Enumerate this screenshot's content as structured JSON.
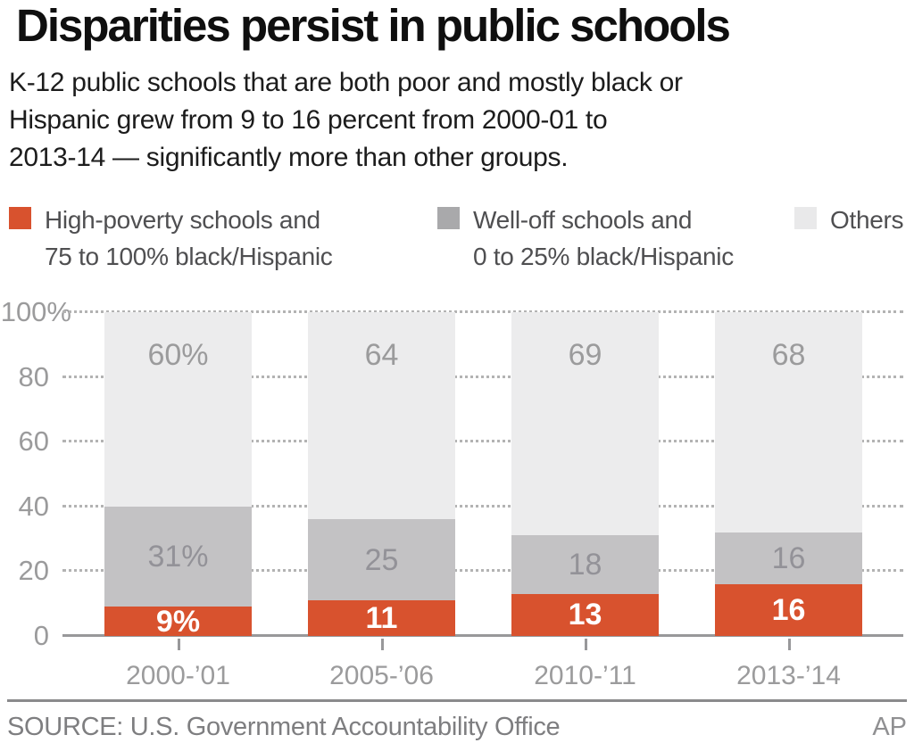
{
  "header": {
    "title": "Disparities persist in public schools",
    "subtitle_lines": [
      "K-12 public schools that are both poor and mostly black or",
      "Hispanic grew from 9 to 16 percent from 2000-01 to",
      "2013-14 — significantly more than other groups."
    ]
  },
  "legend": {
    "items": [
      {
        "lines": [
          "High-poverty schools and",
          "75 to 100% black/Hispanic"
        ],
        "swatch_color": "#d8522e"
      },
      {
        "lines": [
          "Well-off schools and",
          "0 to 25% black/Hispanic"
        ],
        "swatch_color": "#a9a9ab"
      },
      {
        "lines": [
          "Others"
        ],
        "swatch_color": "#e9e9ea"
      }
    ]
  },
  "chart_data": {
    "type": "bar",
    "stacked": true,
    "categories": [
      "2000-’01",
      "2005-’06",
      "2010-’11",
      "2013-’14"
    ],
    "series": [
      {
        "name": "High-poverty schools and 75 to 100% black/Hispanic",
        "color": "#d8522e",
        "values": [
          9,
          11,
          13,
          16
        ],
        "labels": [
          "9%",
          "11",
          "13",
          "16"
        ],
        "label_color": "#ffffff",
        "label_bold": true,
        "label_anchor": "center"
      },
      {
        "name": "Well-off schools and 0 to 25% black/Hispanic",
        "color": "#c3c2c4",
        "values": [
          31,
          25,
          18,
          16
        ],
        "labels": [
          "31%",
          "25",
          "18",
          "16"
        ],
        "label_color": "#939298",
        "label_bold": false,
        "label_anchor": "center"
      },
      {
        "name": "Others",
        "color": "#ececed",
        "values": [
          60,
          64,
          69,
          68
        ],
        "labels": [
          "60%",
          "64",
          "69",
          "68"
        ],
        "label_color": "#9b9b9c",
        "label_bold": false,
        "label_anchor": "top"
      }
    ],
    "yticks": [
      {
        "label": "100%",
        "value": 100
      },
      {
        "label": "80",
        "value": 80
      },
      {
        "label": "60",
        "value": 60
      },
      {
        "label": "40",
        "value": 40
      },
      {
        "label": "20",
        "value": 20
      },
      {
        "label": "0",
        "value": 0
      }
    ],
    "ylim": [
      0,
      100
    ],
    "grid": "dotted-horizontal",
    "legend_position": "top"
  },
  "footer": {
    "source": "SOURCE: U.S. Government Accountability Office",
    "credit": "AP"
  }
}
